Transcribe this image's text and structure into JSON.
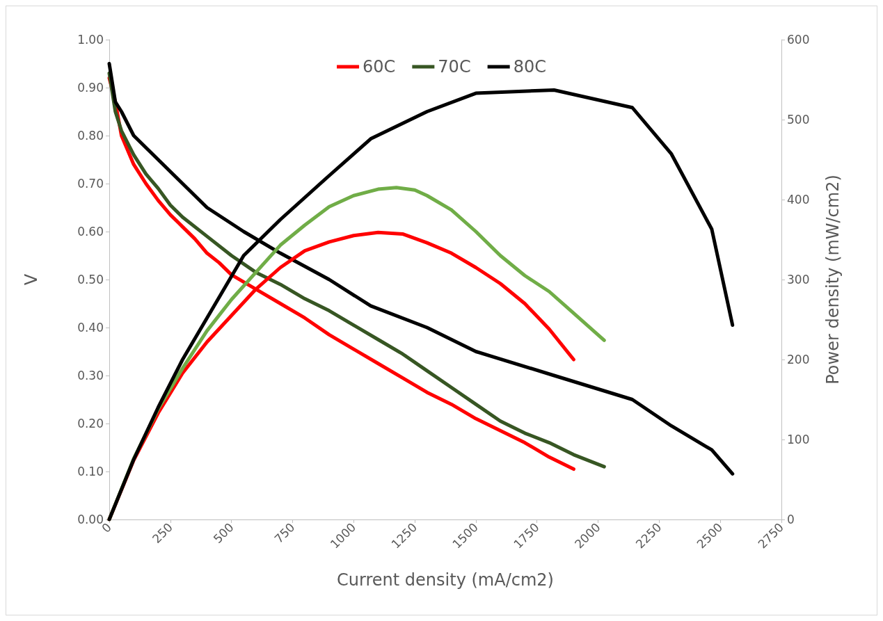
{
  "chart_data": {
    "type": "line",
    "xlabel": "Current density (mA/cm2)",
    "ylabel": "V",
    "y2label": "Power density (mW/cm2)",
    "xlim": [
      0,
      2750
    ],
    "xticks": [
      0,
      250,
      500,
      750,
      1000,
      1250,
      1500,
      1750,
      2000,
      2250,
      2500,
      2750
    ],
    "ylim": [
      0,
      1
    ],
    "yticks": [
      {
        "value": 0,
        "label": "0.00"
      },
      {
        "value": 0.1,
        "label": "0.10"
      },
      {
        "value": 0.2,
        "label": "0.20"
      },
      {
        "value": 0.3,
        "label": "0.30"
      },
      {
        "value": 0.4,
        "label": "0.40"
      },
      {
        "value": 0.5,
        "label": "0.50"
      },
      {
        "value": 0.6,
        "label": "0.60"
      },
      {
        "value": 0.7,
        "label": "0.70"
      },
      {
        "value": 0.8,
        "label": "0.80"
      },
      {
        "value": 0.9,
        "label": "0.90"
      },
      {
        "value": 1,
        "label": "1.00"
      }
    ],
    "y2lim": [
      0,
      600
    ],
    "y2ticks": [
      0,
      100,
      200,
      300,
      400,
      500,
      600
    ],
    "grid": false,
    "legend": "top",
    "marker": "none",
    "line_style": "solid",
    "series": [
      {
        "name": "60C",
        "color": "#ff0000",
        "x": [
          0,
          25,
          50,
          100,
          150,
          200,
          250,
          300,
          350,
          400,
          450,
          500,
          600,
          700,
          800,
          900,
          1000,
          1100,
          1200,
          1300,
          1400,
          1500,
          1600,
          1700,
          1750,
          1800,
          1900
        ],
        "values": [
          0.92,
          0.87,
          0.8,
          0.74,
          0.7,
          0.665,
          0.635,
          0.61,
          0.585,
          0.555,
          0.535,
          0.51,
          0.48,
          0.45,
          0.42,
          0.385,
          0.355,
          0.325,
          0.295,
          0.265,
          0.24,
          0.21,
          0.185,
          0.16,
          0.145,
          0.13,
          0.105
        ]
      },
      {
        "name": "70C",
        "color": "#375623",
        "x": [
          0,
          25,
          50,
          100,
          150,
          200,
          250,
          300,
          400,
          500,
          600,
          700,
          800,
          900,
          1000,
          1100,
          1200,
          1300,
          1400,
          1500,
          1600,
          1700,
          1800,
          1900,
          2025
        ],
        "values": [
          0.93,
          0.85,
          0.81,
          0.76,
          0.72,
          0.69,
          0.655,
          0.63,
          0.59,
          0.55,
          0.515,
          0.49,
          0.46,
          0.435,
          0.405,
          0.375,
          0.345,
          0.31,
          0.275,
          0.24,
          0.205,
          0.18,
          0.16,
          0.135,
          0.11
        ]
      },
      {
        "name": "80C",
        "color": "#000000",
        "x": [
          0,
          25,
          50,
          100,
          200,
          300,
          400,
          550,
          700,
          900,
          1070,
          1300,
          1500,
          1820,
          2140,
          2300,
          2465,
          2550
        ],
        "values": [
          0.95,
          0.87,
          0.85,
          0.8,
          0.75,
          0.7,
          0.65,
          0.6,
          0.555,
          0.5,
          0.445,
          0.4,
          0.35,
          0.3,
          0.25,
          0.195,
          0.145,
          0.095
        ]
      },
      {
        "color": "#ff0000",
        "axis": "y2",
        "x": [
          0,
          100,
          200,
          300,
          400,
          500,
          600,
          700,
          800,
          900,
          1000,
          1100,
          1200,
          1300,
          1400,
          1500,
          1600,
          1700,
          1800,
          1900
        ],
        "values": [
          0,
          74,
          133,
          183,
          222,
          255,
          288,
          315,
          336,
          347,
          355,
          359,
          357,
          346,
          333,
          315,
          295,
          270,
          238,
          200
        ]
      },
      {
        "color": "#70ad47",
        "axis": "y2",
        "x": [
          0,
          100,
          200,
          300,
          400,
          500,
          600,
          700,
          800,
          900,
          1000,
          1100,
          1175,
          1250,
          1300,
          1400,
          1500,
          1600,
          1700,
          1800,
          1900,
          2025
        ],
        "values": [
          0,
          76,
          138,
          189,
          236,
          275,
          309,
          343,
          368,
          391,
          405,
          413,
          415,
          412,
          405,
          387,
          360,
          330,
          305,
          285,
          258,
          224
        ]
      },
      {
        "color": "#000000",
        "axis": "y2",
        "x": [
          0,
          100,
          200,
          300,
          400,
          550,
          700,
          900,
          1070,
          1300,
          1500,
          1820,
          2140,
          2300,
          2465,
          2550
        ],
        "values": [
          0,
          75,
          140,
          200,
          252,
          330,
          375,
          430,
          476,
          510,
          533,
          537,
          515,
          457,
          363,
          243
        ]
      }
    ]
  }
}
